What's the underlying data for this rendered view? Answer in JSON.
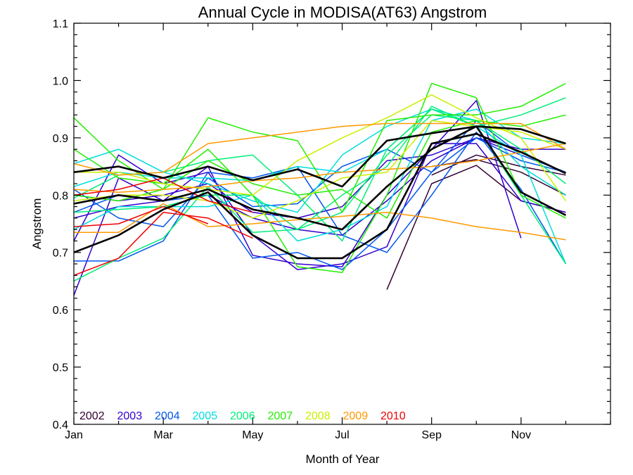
{
  "chart_data": {
    "type": "line",
    "title": "Annual Cycle in MODISA(AT63) Angstrom",
    "xlabel": "Month of Year",
    "ylabel": "Angstrom",
    "xlim": [
      1,
      13
    ],
    "ylim": [
      0.4,
      1.1
    ],
    "x_ticks": [
      {
        "value": 1,
        "label": "Jan"
      },
      {
        "value": 3,
        "label": "Mar"
      },
      {
        "value": 5,
        "label": "May"
      },
      {
        "value": 7,
        "label": "Jul"
      },
      {
        "value": 9,
        "label": "Sep"
      },
      {
        "value": 11,
        "label": "Nov"
      }
    ],
    "y_ticks": [
      0.4,
      0.5,
      0.6,
      0.7,
      0.8,
      0.9,
      1.0,
      1.1
    ],
    "grid": false,
    "legend_placement": "bottom-left",
    "legend": [
      {
        "label": "2002",
        "color": "#330033"
      },
      {
        "label": "2003",
        "color": "#3300cc"
      },
      {
        "label": "2004",
        "color": "#0055ee"
      },
      {
        "label": "2005",
        "color": "#00dddd"
      },
      {
        "label": "2006",
        "color": "#00ee77"
      },
      {
        "label": "2007",
        "color": "#22ee00"
      },
      {
        "label": "2008",
        "color": "#ccee00"
      },
      {
        "label": "2009",
        "color": "#ff9900"
      },
      {
        "label": "2010",
        "color": "#ee0000"
      }
    ],
    "x": [
      1,
      2,
      3,
      4,
      5,
      6,
      7,
      8,
      9,
      10,
      11,
      12
    ],
    "series": [
      {
        "color": "#330033",
        "values": [
          null,
          null,
          null,
          null,
          null,
          null,
          null,
          0.635,
          0.82,
          0.852,
          0.79,
          0.77
        ]
      },
      {
        "color": "#330033",
        "values": [
          null,
          null,
          null,
          null,
          null,
          null,
          null,
          null,
          0.85,
          0.862,
          0.84,
          0.8
        ]
      },
      {
        "color": "#330033",
        "values": [
          null,
          null,
          null,
          null,
          null,
          null,
          null,
          null,
          0.835,
          0.87,
          0.85,
          0.835
        ]
      },
      {
        "color": "#3300cc",
        "values": [
          0.625,
          0.83,
          0.79,
          0.85,
          0.695,
          0.68,
          0.675,
          0.8,
          0.88,
          0.965,
          0.725,
          null
        ]
      },
      {
        "color": "#3300cc",
        "values": [
          0.72,
          0.87,
          0.82,
          0.84,
          0.73,
          0.67,
          0.68,
          0.71,
          0.89,
          0.89,
          0.79,
          0.77
        ]
      },
      {
        "color": "#3300cc",
        "values": [
          0.8,
          0.79,
          0.8,
          0.82,
          0.77,
          0.76,
          0.78,
          0.86,
          0.87,
          0.9,
          0.87,
          0.84
        ]
      },
      {
        "color": "#3300cc",
        "values": [
          0.76,
          0.78,
          0.79,
          0.8,
          0.76,
          0.74,
          0.73,
          0.79,
          0.86,
          0.9,
          0.88,
          0.88
        ]
      },
      {
        "color": "#0055ee",
        "values": [
          0.685,
          0.685,
          0.72,
          0.84,
          0.83,
          0.85,
          0.73,
          0.7,
          0.8,
          0.91,
          0.81,
          0.68
        ]
      },
      {
        "color": "#0055ee",
        "values": [
          0.81,
          0.76,
          0.745,
          0.83,
          0.78,
          0.785,
          0.85,
          0.88,
          0.84,
          0.9,
          0.86,
          0.84
        ]
      },
      {
        "color": "#0055ee",
        "values": [
          0.77,
          0.8,
          0.79,
          0.8,
          0.69,
          0.7,
          0.67,
          0.74,
          0.84,
          0.93,
          0.87,
          0.84
        ]
      },
      {
        "color": "#00dddd",
        "values": [
          0.855,
          0.88,
          0.84,
          0.82,
          0.79,
          0.77,
          0.87,
          0.92,
          0.95,
          0.92,
          0.87,
          0.68
        ]
      },
      {
        "color": "#00dddd",
        "values": [
          0.815,
          0.84,
          0.83,
          0.83,
          0.825,
          0.85,
          0.84,
          0.88,
          0.95,
          0.93,
          0.85,
          0.8
        ]
      },
      {
        "color": "#00dddd",
        "values": [
          0.74,
          0.78,
          0.78,
          0.78,
          0.8,
          0.72,
          0.74,
          0.78,
          0.93,
          0.95,
          0.9,
          0.89
        ]
      },
      {
        "color": "#00ee77",
        "values": [
          0.65,
          0.69,
          0.725,
          0.815,
          0.735,
          0.74,
          0.8,
          0.85,
          0.955,
          0.92,
          0.8,
          0.68
        ]
      },
      {
        "color": "#00ee77",
        "values": [
          0.795,
          0.835,
          0.84,
          0.86,
          0.87,
          0.8,
          0.72,
          0.88,
          0.95,
          0.92,
          0.94,
          0.97
        ]
      },
      {
        "color": "#00ee77",
        "values": [
          0.77,
          0.775,
          0.78,
          0.8,
          0.8,
          0.74,
          0.77,
          0.87,
          0.94,
          0.93,
          0.88,
          0.82
        ]
      },
      {
        "color": "#22ee00",
        "values": [
          0.935,
          0.86,
          0.81,
          0.935,
          0.91,
          0.895,
          0.77,
          0.93,
          0.94,
          0.94,
          0.955,
          0.995
        ]
      },
      {
        "color": "#22ee00",
        "values": [
          0.88,
          0.83,
          0.82,
          0.88,
          0.8,
          0.675,
          0.665,
          0.8,
          0.995,
          0.97,
          0.8,
          0.76
        ]
      },
      {
        "color": "#22ee00",
        "values": [
          0.8,
          0.79,
          0.81,
          0.86,
          0.82,
          0.8,
          0.81,
          0.76,
          0.91,
          0.93,
          0.92,
          0.94
        ]
      },
      {
        "color": "#ccee00",
        "values": [
          0.84,
          0.84,
          0.82,
          0.81,
          0.8,
          0.86,
          0.9,
          0.935,
          0.975,
          0.935,
          0.9,
          0.79
        ]
      },
      {
        "color": "#ccee00",
        "values": [
          0.79,
          0.8,
          0.8,
          0.79,
          0.76,
          0.79,
          0.83,
          0.84,
          0.93,
          0.92,
          0.91,
          0.88
        ]
      },
      {
        "color": "#ff9900",
        "values": [
          0.855,
          0.835,
          0.84,
          0.89,
          0.9,
          0.91,
          0.92,
          0.925,
          0.925,
          0.925,
          0.925,
          0.88
        ]
      },
      {
        "color": "#ff9900",
        "values": [
          0.735,
          0.735,
          0.785,
          0.745,
          0.75,
          0.757,
          0.763,
          0.77,
          0.76,
          0.745,
          0.735,
          0.722
        ]
      },
      {
        "color": "#ff9900",
        "values": [
          0.81,
          0.805,
          0.81,
          0.815,
          0.825,
          0.83,
          0.84,
          0.845,
          0.85,
          0.86,
          0.875,
          0.89
        ]
      },
      {
        "color": "#ee0000",
        "values": [
          0.66,
          0.69,
          0.77,
          0.76,
          0.725,
          null,
          null,
          null,
          null,
          null,
          null,
          null
        ]
      },
      {
        "color": "#ee0000",
        "values": [
          0.745,
          0.75,
          0.78,
          0.75,
          null,
          null,
          null,
          null,
          null,
          null,
          null,
          null
        ]
      },
      {
        "color": "#ee0000",
        "values": [
          0.8,
          0.81,
          0.83,
          0.79,
          0.77,
          null,
          null,
          null,
          null,
          null,
          null,
          null
        ]
      },
      {
        "color": "#000000",
        "values": [
          0.84,
          0.85,
          0.83,
          0.85,
          0.826,
          0.845,
          0.815,
          0.895,
          0.908,
          0.92,
          0.915,
          0.89
        ]
      },
      {
        "color": "#000000",
        "values": [
          0.7,
          0.73,
          0.775,
          0.805,
          0.73,
          0.69,
          0.69,
          0.74,
          0.89,
          0.907,
          0.875,
          0.838
        ]
      },
      {
        "color": "#000000",
        "values": [
          0.785,
          0.8,
          0.79,
          0.81,
          0.775,
          0.76,
          0.74,
          0.815,
          0.88,
          0.92,
          0.805,
          0.765
        ]
      }
    ]
  }
}
